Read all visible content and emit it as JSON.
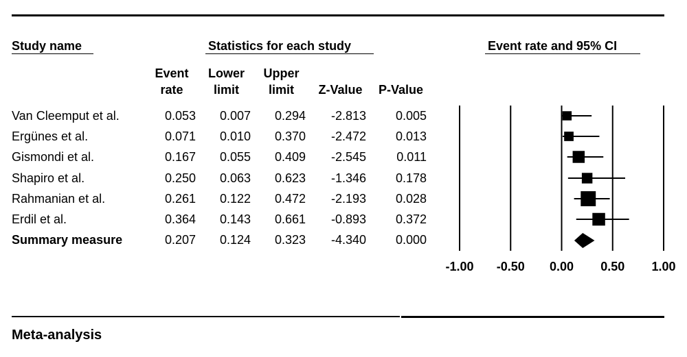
{
  "headers": {
    "study": "Study name",
    "stats": "Statistics for each study",
    "plot": "Event rate and 95% CI"
  },
  "columns": [
    {
      "line1": "Event",
      "line2": "rate"
    },
    {
      "line1": "Lower",
      "line2": "limit"
    },
    {
      "line1": "Upper",
      "line2": "limit"
    },
    {
      "line1": "",
      "line2": "Z-Value"
    },
    {
      "line1": "",
      "line2": "P-Value"
    }
  ],
  "rows": [
    {
      "name": "Van Cleemput et al.",
      "rate": "0.053",
      "lower": "0.007",
      "upper": "0.294",
      "z": "-2.813",
      "p": "0.005"
    },
    {
      "name": "Ergünes et al.",
      "rate": "0.071",
      "lower": "0.010",
      "upper": "0.370",
      "z": "-2.472",
      "p": "0.013"
    },
    {
      "name": "Gismondi et al.",
      "rate": "0.167",
      "lower": "0.055",
      "upper": "0.409",
      "z": "-2.545",
      "p": "0.011"
    },
    {
      "name": "Shapiro et al.",
      "rate": "0.250",
      "lower": "0.063",
      "upper": "0.623",
      "z": "-1.346",
      "p": "0.178"
    },
    {
      "name": "Rahmanian et al.",
      "rate": "0.261",
      "lower": "0.122",
      "upper": "0.472",
      "z": "-2.193",
      "p": "0.028"
    },
    {
      "name": "Erdil et al.",
      "rate": "0.364",
      "lower": "0.143",
      "upper": "0.661",
      "z": "-0.893",
      "p": "0.372"
    },
    {
      "name": "Summary measure",
      "rate": "0.207",
      "lower": "0.124",
      "upper": "0.323",
      "z": "-4.340",
      "p": "0.000",
      "summary": true
    }
  ],
  "footer": "Meta-analysis",
  "chart_data": {
    "type": "scatter",
    "title": "Event rate and 95% CI",
    "xlim": [
      -1.0,
      1.0
    ],
    "ticks": [
      -1.0,
      -0.5,
      0.0,
      0.5,
      1.0
    ],
    "tick_labels": [
      "-1.00",
      "-0.50",
      "0.00",
      "0.50",
      "1.00"
    ],
    "series": [
      {
        "points": [
          {
            "study": "Van Cleemput et al.",
            "x": 0.053,
            "lower": 0.007,
            "upper": 0.294,
            "weight": 1
          },
          {
            "study": "Ergünes et al.",
            "x": 0.071,
            "lower": 0.01,
            "upper": 0.37,
            "weight": 1.1
          },
          {
            "study": "Gismondi et al.",
            "x": 0.167,
            "lower": 0.055,
            "upper": 0.409,
            "weight": 2.2
          },
          {
            "study": "Shapiro et al.",
            "x": 0.25,
            "lower": 0.063,
            "upper": 0.623,
            "weight": 1.6
          },
          {
            "study": "Rahmanian et al.",
            "x": 0.261,
            "lower": 0.122,
            "upper": 0.472,
            "weight": 3.5
          },
          {
            "study": "Erdil et al.",
            "x": 0.364,
            "lower": 0.143,
            "upper": 0.661,
            "weight": 2.5
          }
        ]
      }
    ],
    "summary": {
      "x": 0.207,
      "lower": 0.124,
      "upper": 0.323
    }
  }
}
